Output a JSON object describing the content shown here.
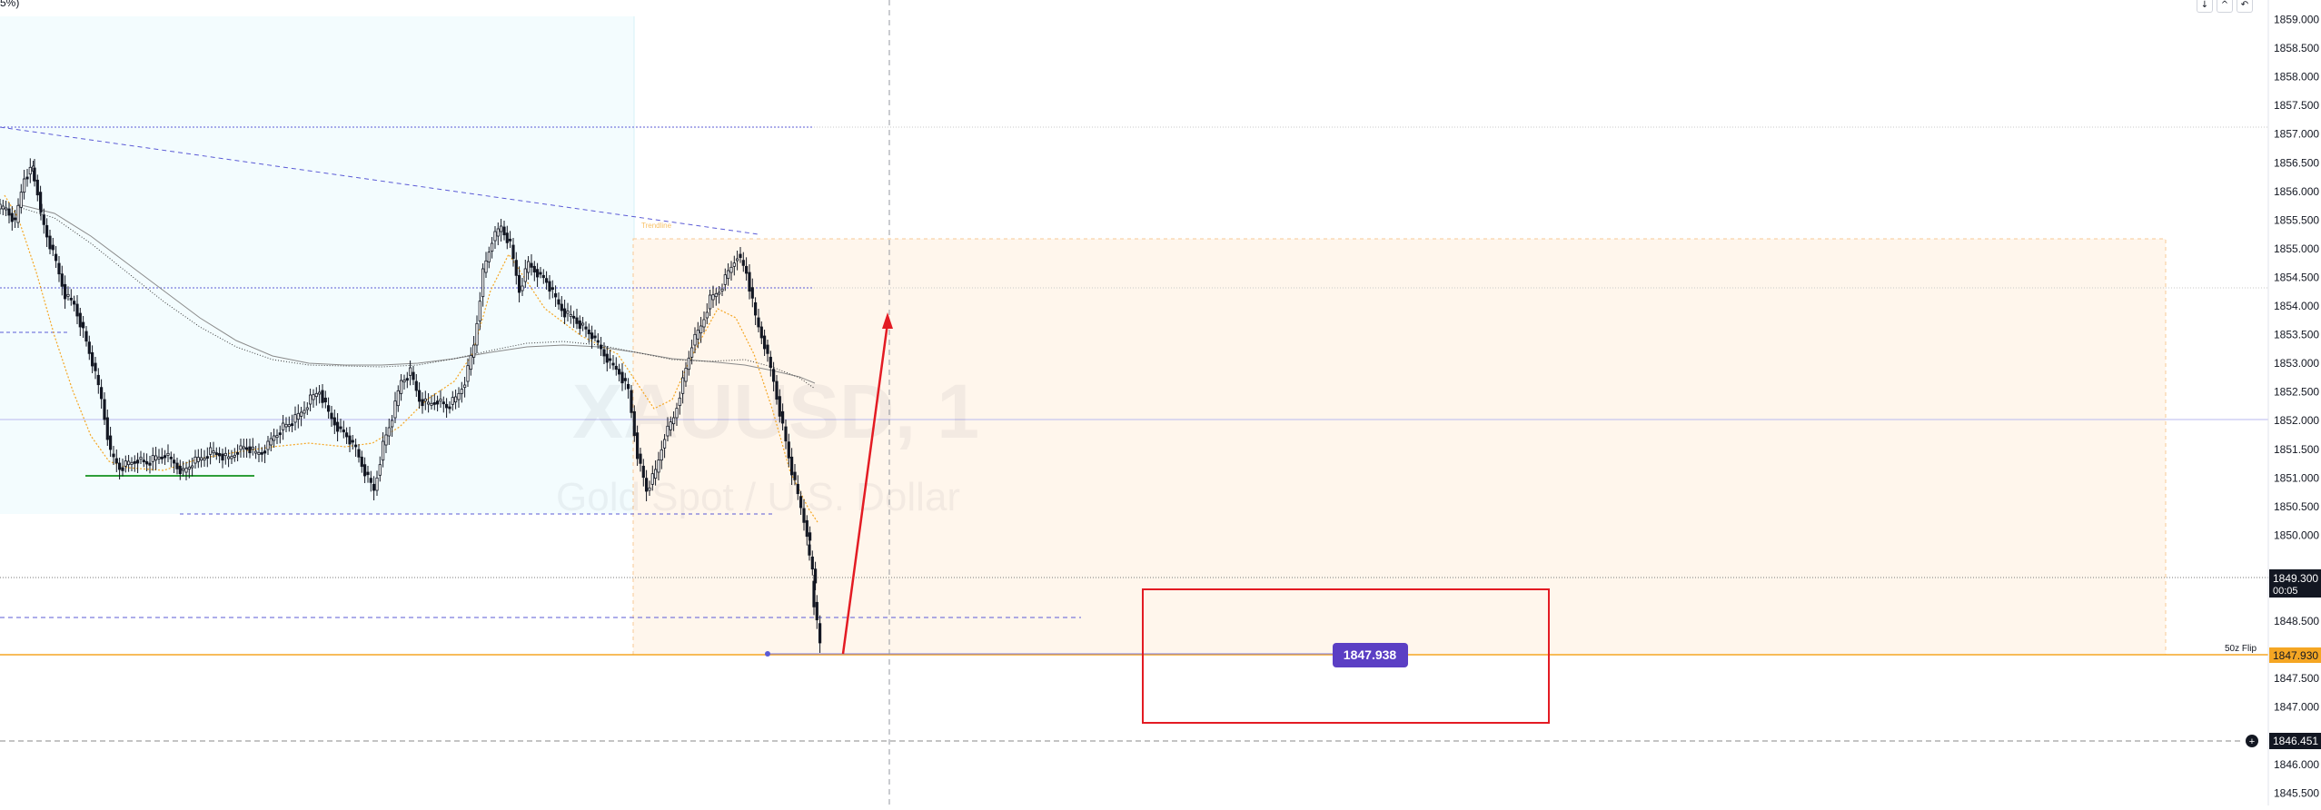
{
  "header": {
    "corner_text": "5%)"
  },
  "toolbar": {
    "icons": [
      "arrow-down-icon",
      "chevron-up-icon",
      "undo-icon"
    ],
    "glyphs": [
      "↓",
      "^",
      "↶"
    ]
  },
  "watermark": {
    "symbol": "XAUUSD, 1",
    "name": "Gold Spot / U.S. Dollar"
  },
  "price_axis": {
    "ticks": [
      "1859.000",
      "1858.500",
      "1858.000",
      "1857.500",
      "1857.000",
      "1856.500",
      "1856.000",
      "1855.500",
      "1855.000",
      "1854.500",
      "1854.000",
      "1853.500",
      "1853.000",
      "1852.500",
      "1852.000",
      "1851.500",
      "1851.000",
      "1850.500",
      "1850.000",
      "1848.500",
      "1847.500",
      "1847.000",
      "1846.000",
      "1845.500"
    ],
    "last_price": {
      "value": "1849.300",
      "countdown": "00:05",
      "color": "#131722"
    },
    "flip_level": {
      "value": "1847.930",
      "color": "#f5a623"
    },
    "alert_level": {
      "value": "1846.451",
      "color": "#131722"
    }
  },
  "annotations": {
    "flip_label": "50z Flip",
    "price_tag": "1847.938",
    "price_tag_color": "#5b3fc4",
    "target_box_color": "#e31b23",
    "arrow_color": "#e31b23"
  },
  "colors": {
    "cyan_zone": "#f3fcfe",
    "orange_zone": "#fff6ec",
    "candle": "#131722",
    "level_line": "#5b5bd6"
  }
}
